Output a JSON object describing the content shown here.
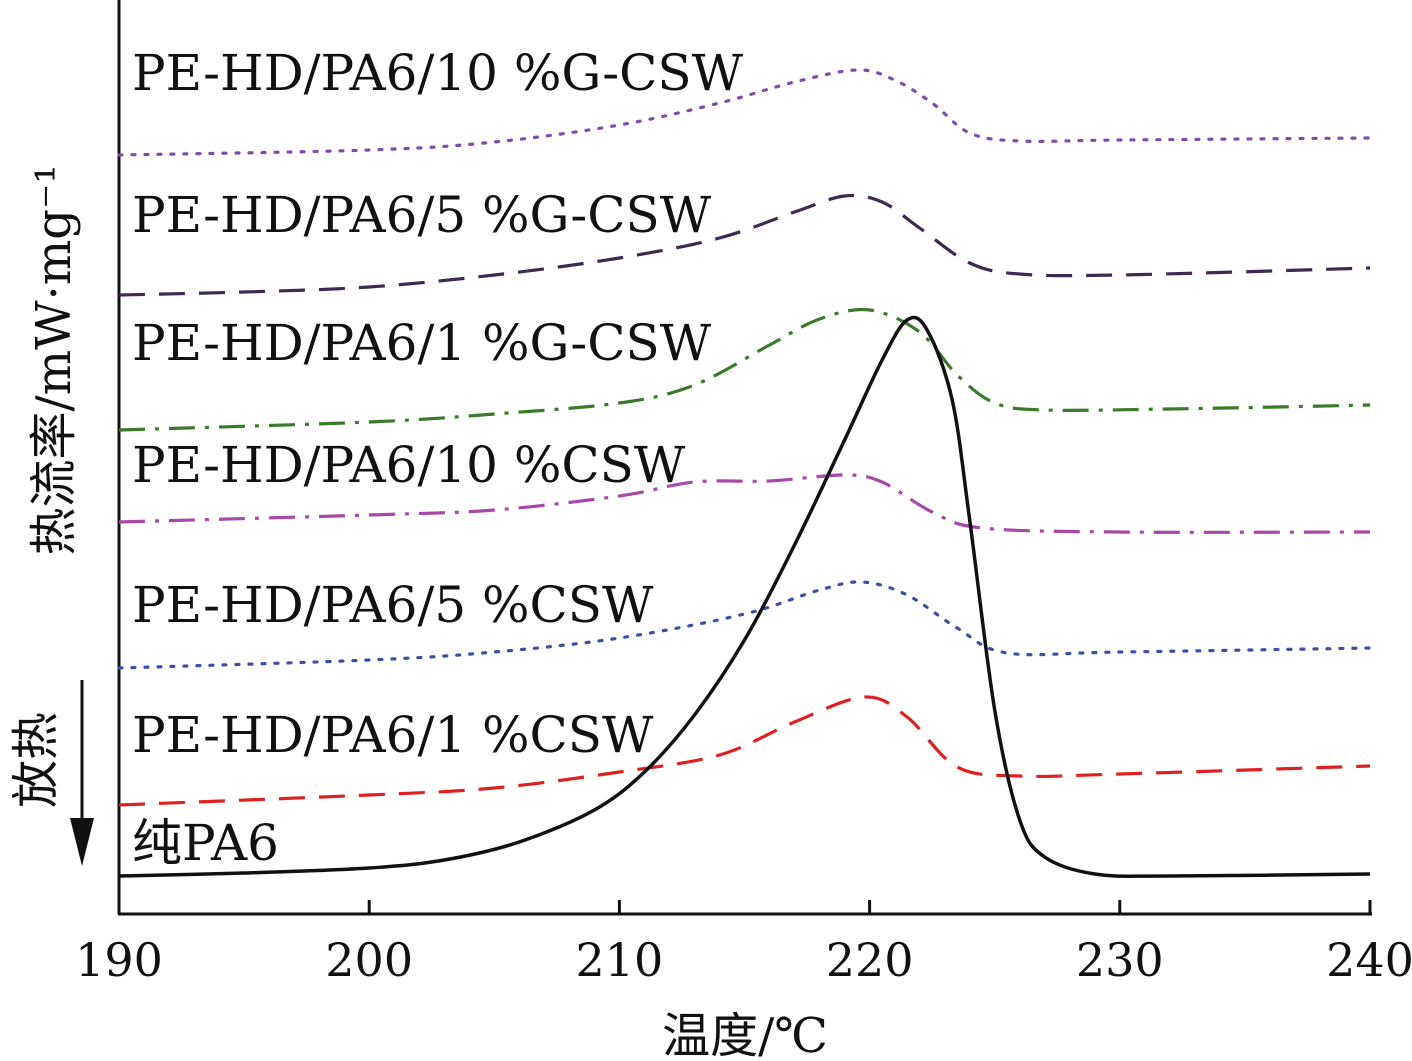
{
  "chart_data": {
    "type": "line",
    "xlabel": "温度/℃",
    "ylabel": "热流率/mW·mg⁻¹",
    "side_note": "放热",
    "xlim": [
      190,
      240
    ],
    "x_ticks": [
      "190",
      "200",
      "210",
      "220",
      "230",
      "240"
    ],
    "grid": false,
    "series": [
      {
        "name": "PE-HD/PA6/10 %G-CSW",
        "color": "#7b4fa8",
        "style": "dotted",
        "points": [
          [
            190,
            155
          ],
          [
            200,
            150
          ],
          [
            205,
            142
          ],
          [
            210,
            125
          ],
          [
            214,
            103
          ],
          [
            217,
            82
          ],
          [
            219.5,
            70
          ],
          [
            221,
            80
          ],
          [
            222.5,
            103
          ],
          [
            224,
            133
          ],
          [
            226,
            141
          ],
          [
            230,
            140
          ],
          [
            240,
            138
          ]
        ]
      },
      {
        "name": "PE-HD/PA6/5 %G-CSW",
        "color": "#3d2b52",
        "style": "dashed",
        "points": [
          [
            190,
            295
          ],
          [
            195,
            292
          ],
          [
            200,
            287
          ],
          [
            205,
            275
          ],
          [
            210,
            258
          ],
          [
            214,
            238
          ],
          [
            217,
            212
          ],
          [
            219,
            196
          ],
          [
            220.5,
            202
          ],
          [
            222,
            228
          ],
          [
            224,
            263
          ],
          [
            226,
            274
          ],
          [
            230,
            275
          ],
          [
            240,
            268
          ]
        ]
      },
      {
        "name": "PE-HD/PA6/1 %G-CSW",
        "color": "#3a7a2a",
        "style": "dashdot",
        "points": [
          [
            190,
            430
          ],
          [
            200,
            422
          ],
          [
            205,
            414
          ],
          [
            210,
            403
          ],
          [
            213,
            385
          ],
          [
            216,
            345
          ],
          [
            218,
            319
          ],
          [
            220,
            310
          ],
          [
            222,
            332
          ],
          [
            223.5,
            375
          ],
          [
            225,
            403
          ],
          [
            227,
            410
          ],
          [
            232,
            409
          ],
          [
            240,
            405
          ]
        ]
      },
      {
        "name": "PE-HD/PA6/10 %CSW",
        "color": "#a848a8",
        "style": "dashdot",
        "points": [
          [
            190,
            522
          ],
          [
            200,
            515
          ],
          [
            205,
            510
          ],
          [
            210,
            496
          ],
          [
            213,
            482
          ],
          [
            216,
            481
          ],
          [
            219,
            475
          ],
          [
            220.5,
            482
          ],
          [
            222.5,
            512
          ],
          [
            224.5,
            528
          ],
          [
            230,
            532
          ],
          [
            240,
            532
          ]
        ]
      },
      {
        "name": "PE-HD/PA6/5 %CSW",
        "color": "#3c4fa0",
        "style": "dotted",
        "points": [
          [
            190,
            668
          ],
          [
            200,
            660
          ],
          [
            205,
            652
          ],
          [
            210,
            638
          ],
          [
            215,
            614
          ],
          [
            218,
            590
          ],
          [
            219.7,
            582
          ],
          [
            221.5,
            595
          ],
          [
            223.5,
            628
          ],
          [
            225.5,
            653
          ],
          [
            230,
            652
          ],
          [
            240,
            648
          ]
        ]
      },
      {
        "name": "PE-HD/PA6/1 %CSW",
        "color": "#e02020",
        "style": "dashed",
        "points": [
          [
            190,
            805
          ],
          [
            200,
            795
          ],
          [
            205,
            788
          ],
          [
            210,
            772
          ],
          [
            214,
            755
          ],
          [
            217,
            722
          ],
          [
            219.8,
            697
          ],
          [
            221.5,
            717
          ],
          [
            223.5,
            767
          ],
          [
            226,
            776
          ],
          [
            230,
            774
          ],
          [
            240,
            766
          ]
        ]
      },
      {
        "name": "纯PA6",
        "color": "#111111",
        "style": "solid",
        "points": [
          [
            190,
            876
          ],
          [
            195,
            873
          ],
          [
            200,
            868
          ],
          [
            203,
            860
          ],
          [
            206,
            842
          ],
          [
            209,
            810
          ],
          [
            211,
            772
          ],
          [
            213,
            715
          ],
          [
            215,
            640
          ],
          [
            217,
            545
          ],
          [
            219,
            440
          ],
          [
            220.5,
            360
          ],
          [
            221.5,
            320
          ],
          [
            222.3,
            330
          ],
          [
            223.3,
            400
          ],
          [
            224,
            520
          ],
          [
            225,
            710
          ],
          [
            226,
            820
          ],
          [
            227,
            857
          ],
          [
            229,
            874
          ],
          [
            232,
            876
          ],
          [
            240,
            874
          ]
        ]
      }
    ]
  }
}
